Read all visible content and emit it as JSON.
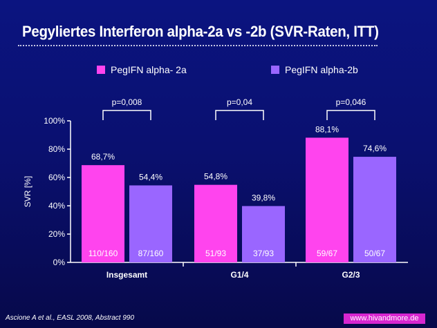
{
  "title": "Pegyliertes Interferon alpha-2a vs -2b (SVR-Raten, ITT)",
  "footer": {
    "reference": "Ascione A et al., EASL 2008, Abstract 990",
    "website": "www.hivandmore.de"
  },
  "colors": {
    "background": "#0a1070",
    "series_a": "#ff44ee",
    "series_b": "#9a66ff",
    "text": "#ffffff",
    "footer_badge": "#d726d0"
  },
  "chart_data": {
    "type": "bar",
    "ylabel": "SVR [%]",
    "ylim": [
      0,
      100
    ],
    "yticks": [
      "0%",
      "20%",
      "40%",
      "60%",
      "80%",
      "100%"
    ],
    "ytick_values": [
      0,
      20,
      40,
      60,
      80,
      100
    ],
    "categories": [
      "Insgesamt",
      "G1/4",
      "G2/3"
    ],
    "series": [
      {
        "name": "PegIFN alpha- 2a",
        "values": [
          68.7,
          54.8,
          88.1
        ],
        "value_labels": [
          "68,7%",
          "54,8%",
          "88,1%"
        ],
        "count_labels": [
          "110/160",
          "51/93",
          "59/67"
        ]
      },
      {
        "name": "PegIFN alpha-2b",
        "values": [
          54.4,
          39.8,
          74.6
        ],
        "value_labels": [
          "54,4%",
          "39,8%",
          "74,6%"
        ],
        "count_labels": [
          "87/160",
          "37/93",
          "50/67"
        ]
      }
    ],
    "p_values": [
      "p=0,008",
      "p=0,04",
      "p=0,046"
    ],
    "legend_position": "top",
    "grid": false
  }
}
